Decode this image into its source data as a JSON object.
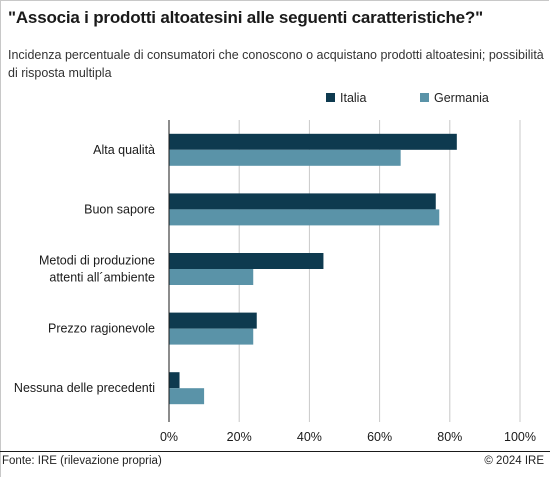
{
  "title": "\"Associa i prodotti altoatesini alle seguenti caratteristiche?\"",
  "subtitle": "Incidenza percentuale di consumatori che conoscono o acquistano prodotti altoatesini; possibilità di risposta multipla",
  "source": "Fonte: IRE (rilevazione propria)",
  "copyright": "© 2024 IRE",
  "colors": {
    "italia": "#0e3a4f",
    "germania": "#5a93a8",
    "grid": "#c8c8c8"
  },
  "chart_data": {
    "type": "bar",
    "orientation": "horizontal",
    "categories": [
      [
        "Alta qualità"
      ],
      [
        "Buon sapore"
      ],
      [
        "Metodi di produzione",
        "attenti all´ambiente"
      ],
      [
        "Prezzo ragionevole"
      ],
      [
        "Nessuna delle precedenti"
      ]
    ],
    "series": [
      {
        "name": "Italia",
        "values": [
          82,
          76,
          44,
          25,
          3
        ]
      },
      {
        "name": "Germania",
        "values": [
          66,
          77,
          24,
          24,
          10
        ]
      }
    ],
    "xlim": [
      0,
      100
    ],
    "xticks": [
      "0%",
      "20%",
      "40%",
      "60%",
      "80%",
      "100%"
    ],
    "tick_values": [
      0,
      20,
      40,
      60,
      80,
      100
    ],
    "grid": true,
    "legend": "top-right"
  }
}
